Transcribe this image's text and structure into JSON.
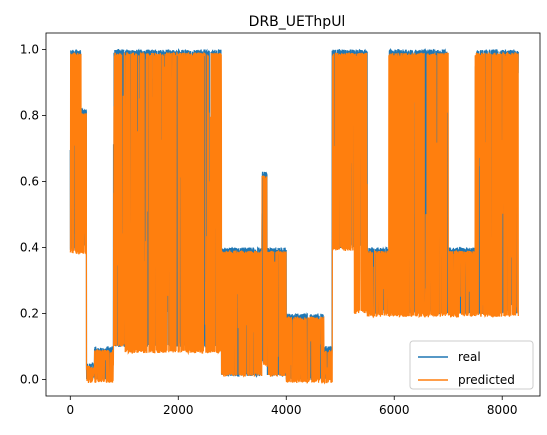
{
  "chart_data": {
    "type": "line",
    "title": "DRB_UEThpUl",
    "xlabel": "",
    "ylabel": "",
    "xlim": [
      -450,
      8700
    ],
    "ylim": [
      -0.05,
      1.05
    ],
    "x_ticks": [
      0,
      2000,
      4000,
      6000,
      8000
    ],
    "y_ticks": [
      0.0,
      0.2,
      0.4,
      0.6,
      0.8,
      1.0
    ],
    "x_tick_labels": [
      "0",
      "2000",
      "4000",
      "6000",
      "8000"
    ],
    "y_tick_labels": [
      "0.0",
      "0.2",
      "0.4",
      "0.6",
      "0.8",
      "1.0"
    ],
    "grid": false,
    "legend_position": "lower-right",
    "n_points": 8300,
    "segments": [
      {
        "x_start": 0,
        "x_end": 200,
        "real_range": [
          0.39,
          1.0
        ],
        "predicted_range": [
          0.38,
          0.99
        ]
      },
      {
        "x_start": 200,
        "x_end": 300,
        "real_range": [
          0.4,
          0.82
        ],
        "predicted_range": [
          0.38,
          0.81
        ]
      },
      {
        "x_start": 300,
        "x_end": 450,
        "real_range": [
          0.0,
          0.05
        ],
        "predicted_range": [
          -0.01,
          0.04
        ]
      },
      {
        "x_start": 450,
        "x_end": 800,
        "real_range": [
          0.0,
          0.1
        ],
        "predicted_range": [
          -0.01,
          0.09
        ]
      },
      {
        "x_start": 800,
        "x_end": 1000,
        "real_range": [
          0.1,
          1.0
        ],
        "predicted_range": [
          0.1,
          0.99
        ]
      },
      {
        "x_start": 1000,
        "x_end": 2000,
        "real_range": [
          0.1,
          1.0
        ],
        "predicted_range": [
          0.08,
          0.99
        ]
      },
      {
        "x_start": 2000,
        "x_end": 2800,
        "real_range": [
          0.1,
          1.0
        ],
        "predicted_range": [
          0.08,
          0.99
        ]
      },
      {
        "x_start": 2800,
        "x_end": 3550,
        "real_range": [
          0.01,
          0.4
        ],
        "predicted_range": [
          0.01,
          0.39
        ]
      },
      {
        "x_start": 3550,
        "x_end": 3650,
        "real_range": [
          0.05,
          0.63
        ],
        "predicted_range": [
          0.04,
          0.62
        ]
      },
      {
        "x_start": 3650,
        "x_end": 4000,
        "real_range": [
          0.01,
          0.4
        ],
        "predicted_range": [
          0.01,
          0.39
        ]
      },
      {
        "x_start": 4000,
        "x_end": 4700,
        "real_range": [
          0.0,
          0.2
        ],
        "predicted_range": [
          -0.01,
          0.19
        ]
      },
      {
        "x_start": 4700,
        "x_end": 4850,
        "real_range": [
          0.0,
          0.1
        ],
        "predicted_range": [
          -0.01,
          0.09
        ]
      },
      {
        "x_start": 4850,
        "x_end": 5250,
        "real_range": [
          0.4,
          1.0
        ],
        "predicted_range": [
          0.39,
          0.99
        ]
      },
      {
        "x_start": 5250,
        "x_end": 5500,
        "real_range": [
          0.4,
          1.0
        ],
        "predicted_range": [
          0.2,
          0.99
        ]
      },
      {
        "x_start": 5500,
        "x_end": 5900,
        "real_range": [
          0.2,
          0.4
        ],
        "predicted_range": [
          0.19,
          0.39
        ]
      },
      {
        "x_start": 5900,
        "x_end": 7000,
        "real_range": [
          0.2,
          1.0
        ],
        "predicted_range": [
          0.19,
          0.99
        ]
      },
      {
        "x_start": 7000,
        "x_end": 7500,
        "real_range": [
          0.2,
          0.4
        ],
        "predicted_range": [
          0.19,
          0.39
        ]
      },
      {
        "x_start": 7500,
        "x_end": 8300,
        "real_range": [
          0.2,
          1.0
        ],
        "predicted_range": [
          0.19,
          0.99
        ]
      }
    ],
    "series": [
      {
        "name": "real",
        "color": "#1f77b4"
      },
      {
        "name": "predicted",
        "color": "#ff7f0e"
      }
    ]
  }
}
